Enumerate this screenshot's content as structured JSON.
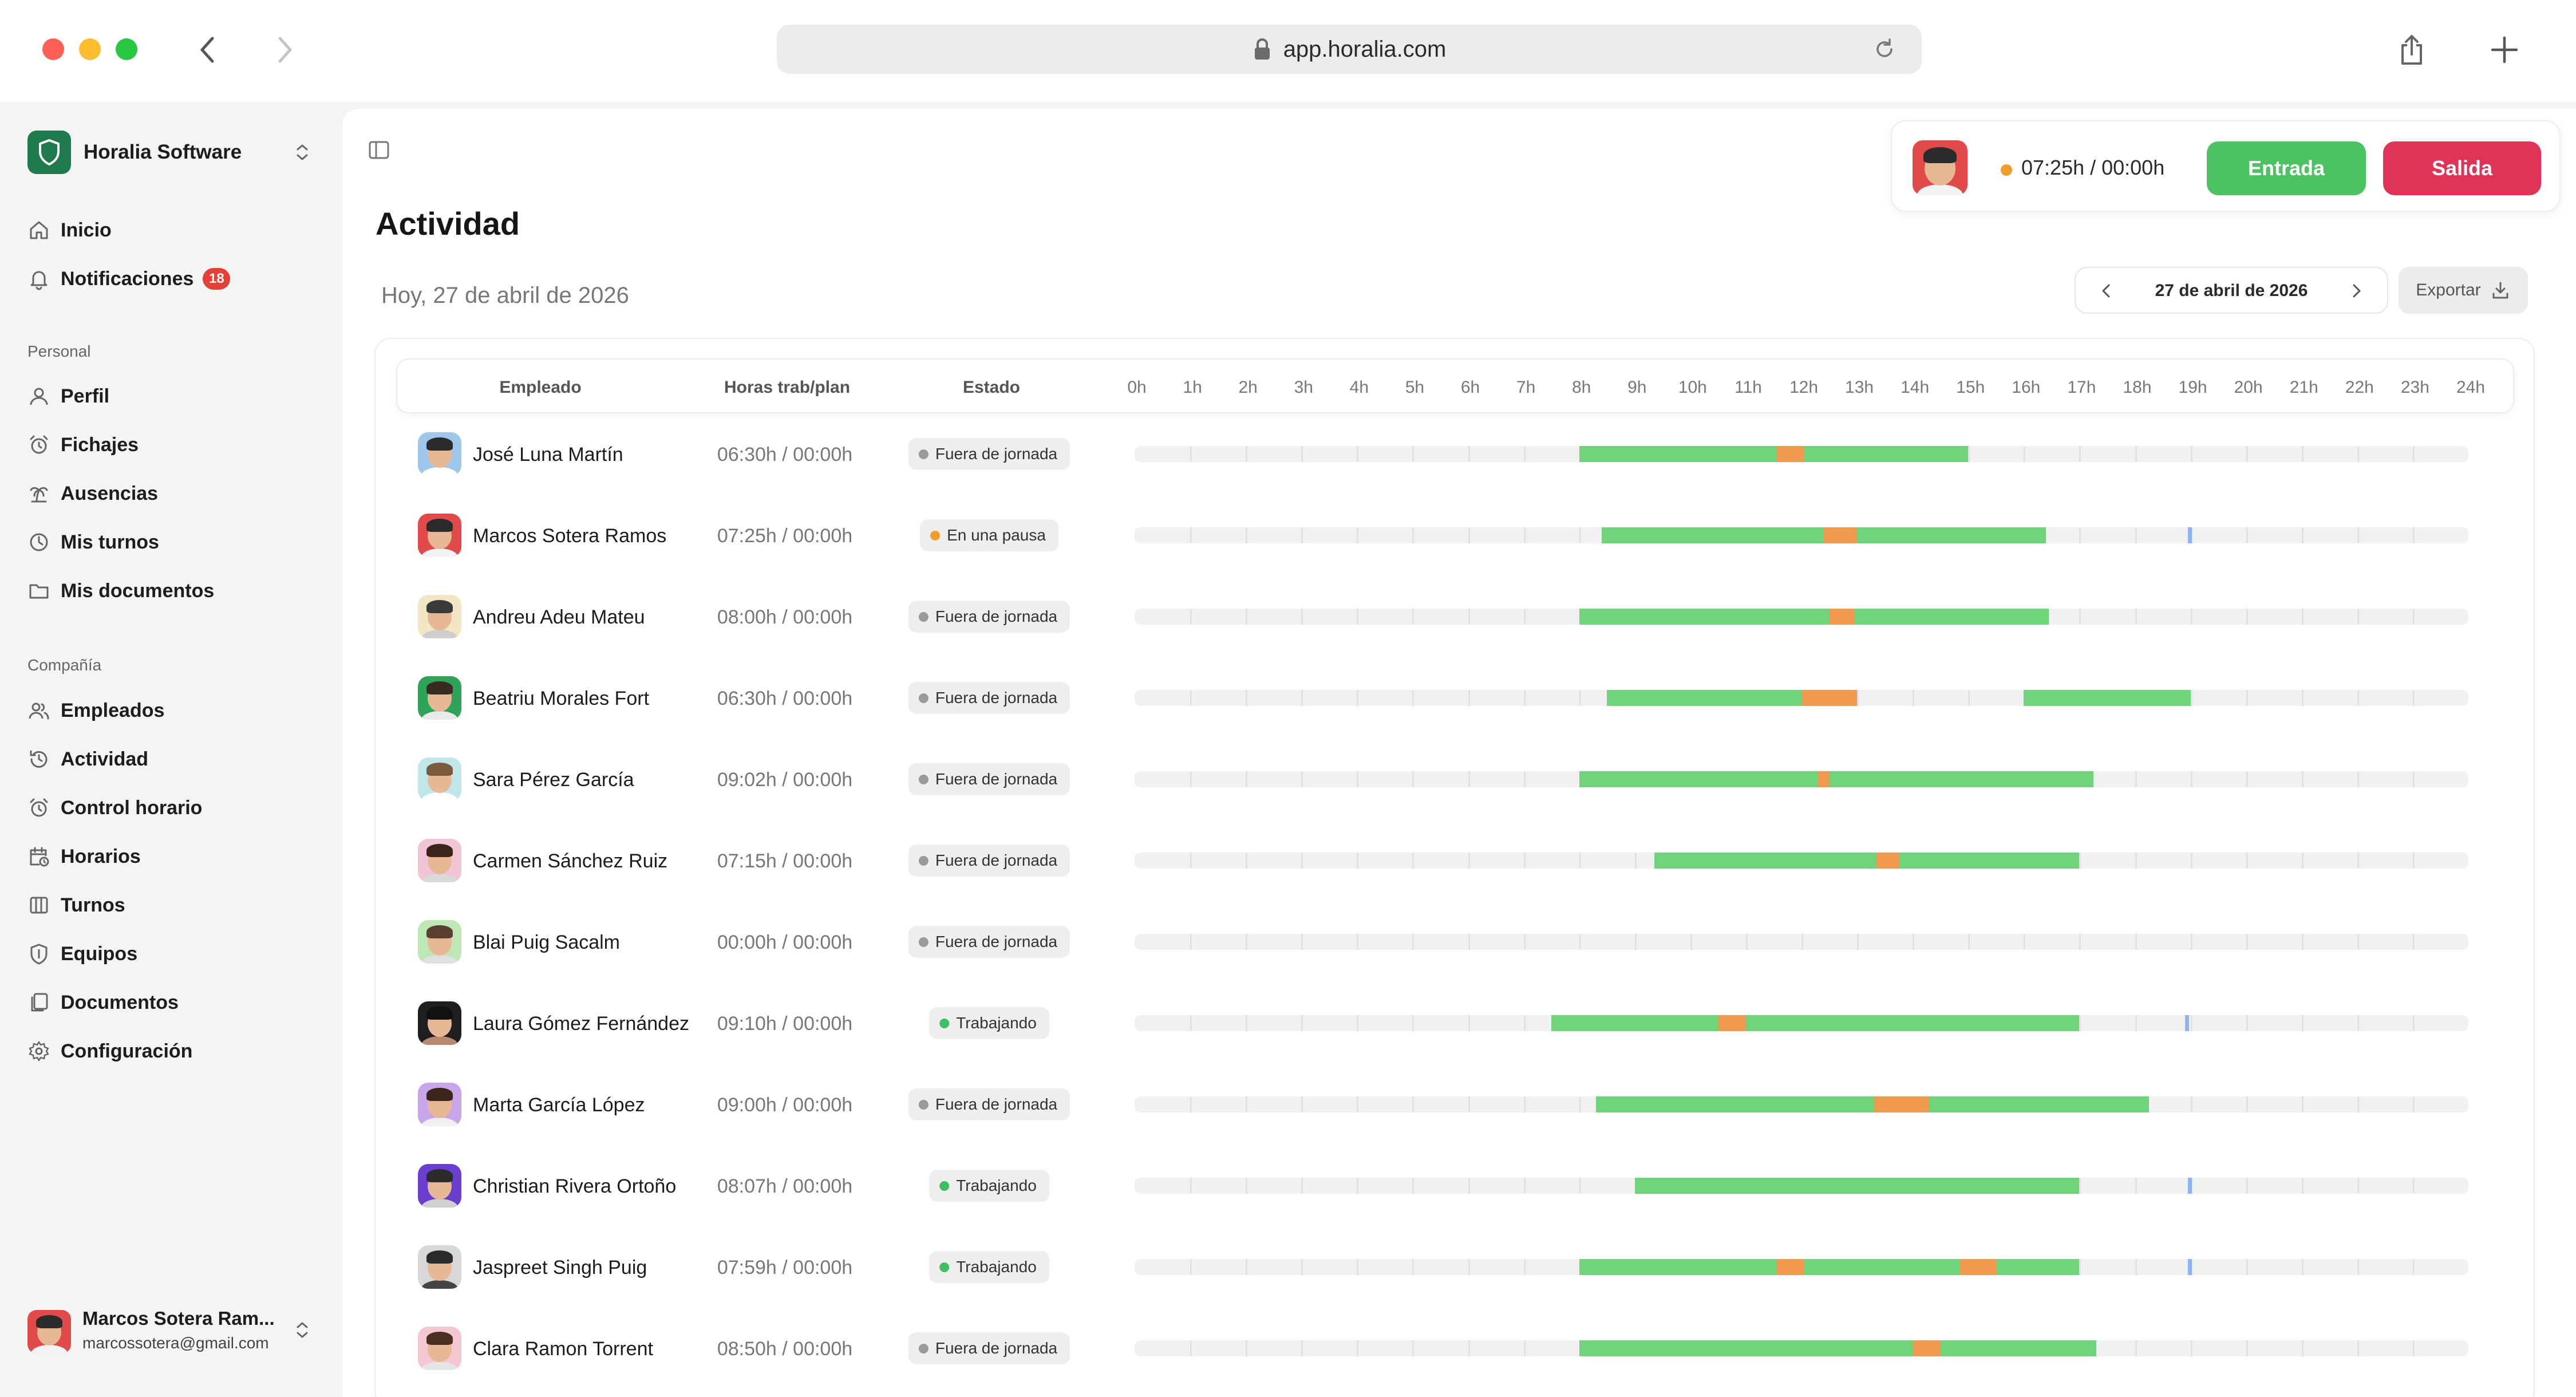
{
  "browser": {
    "url": "app.horalia.com",
    "traffic_lights": [
      "#fe5f57",
      "#febc2e",
      "#28c840"
    ]
  },
  "sidebar": {
    "org_name": "Horalia Software",
    "org_color": "#1f7a4e",
    "top_items": [
      {
        "label": "Inicio",
        "icon": "home-icon"
      },
      {
        "label": "Notificaciones",
        "icon": "bell-icon",
        "badge": "18"
      }
    ],
    "personal_label": "Personal",
    "personal_items": [
      {
        "label": "Perfil",
        "icon": "user-icon"
      },
      {
        "label": "Fichajes",
        "icon": "alarm-clock-icon"
      },
      {
        "label": "Ausencias",
        "icon": "palm-tree-icon"
      },
      {
        "label": "Mis turnos",
        "icon": "clock-icon"
      },
      {
        "label": "Mis documentos",
        "icon": "folder-icon"
      }
    ],
    "company_label": "Compañía",
    "company_items": [
      {
        "label": "Empleados",
        "icon": "users-icon"
      },
      {
        "label": "Actividad",
        "icon": "history-icon"
      },
      {
        "label": "Control horario",
        "icon": "alarm-clock-icon"
      },
      {
        "label": "Horarios",
        "icon": "calendar-clock-icon"
      },
      {
        "label": "Turnos",
        "icon": "columns-icon"
      },
      {
        "label": "Equipos",
        "icon": "shield-icon"
      },
      {
        "label": "Documentos",
        "icon": "documents-icon"
      },
      {
        "label": "Configuración",
        "icon": "gear-icon"
      }
    ],
    "user": {
      "name": "Marcos Sotera Ram...",
      "email": "marcossotera@gmail.com"
    }
  },
  "header": {
    "title": "Actividad",
    "today": "Hoy, 27 de abril de 2026",
    "clock": {
      "status_color": "#ef9d2b",
      "time": "07:25h / 00:00h",
      "in_label": "Entrada",
      "out_label": "Salida"
    },
    "date": "27 de abril de 2026",
    "export_label": "Exportar"
  },
  "table": {
    "col_employee": "Empleado",
    "col_hours": "Horas trab/plan",
    "col_status": "Estado",
    "hours": [
      "0h",
      "1h",
      "2h",
      "3h",
      "4h",
      "5h",
      "6h",
      "7h",
      "8h",
      "9h",
      "10h",
      "11h",
      "12h",
      "13h",
      "14h",
      "15h",
      "16h",
      "17h",
      "18h",
      "19h",
      "20h",
      "21h",
      "22h",
      "23h",
      "24h"
    ],
    "colors": {
      "work": "#6fd47a",
      "pause": "#ef9a4e",
      "now": "#8fb2f7",
      "dot_off": "#9a9a9a",
      "dot_pause": "#ef9d2b",
      "dot_work": "#3fbf5f"
    },
    "rows": [
      {
        "name": "José Luna Martín",
        "hours": "06:30h / 00:00h",
        "status": "Fuera de jornada",
        "state": "off",
        "avatar": {
          "bg": "#9fc7ec",
          "hair": "#2b2b2b",
          "shirt": "#ffffff"
        },
        "segments": [
          [
            8.0,
            11.55,
            "work"
          ],
          [
            11.55,
            12.05,
            "pause"
          ],
          [
            12.05,
            15.0,
            "work"
          ]
        ]
      },
      {
        "name": "Marcos Sotera Ramos",
        "hours": "07:25h / 00:00h",
        "status": "En una pausa",
        "state": "pause",
        "avatar": {
          "bg": "#e04a4a",
          "hair": "#2b2b2b",
          "shirt": "#f3f3f3"
        },
        "segments": [
          [
            8.4,
            12.4,
            "work"
          ],
          [
            12.4,
            13.0,
            "pause"
          ],
          [
            13.0,
            16.4,
            "work"
          ],
          [
            18.95,
            19.02,
            "now"
          ]
        ]
      },
      {
        "name": "Andreu Adeu Mateu",
        "hours": "08:00h / 00:00h",
        "status": "Fuera de jornada",
        "state": "off",
        "avatar": {
          "bg": "#f3e6c4",
          "hair": "#3a3a3a",
          "shirt": "#cfcfcf"
        },
        "segments": [
          [
            8.0,
            12.5,
            "work"
          ],
          [
            12.5,
            12.95,
            "pause"
          ],
          [
            12.95,
            16.45,
            "work"
          ]
        ]
      },
      {
        "name": "Beatriu Morales Fort",
        "hours": "06:30h / 00:00h",
        "status": "Fuera de jornada",
        "state": "off",
        "avatar": {
          "bg": "#2fa35a",
          "hair": "#3a2b22",
          "shirt": "#e9e9e9"
        },
        "segments": [
          [
            8.5,
            12.0,
            "work"
          ],
          [
            12.0,
            13.0,
            "pause"
          ],
          [
            16.0,
            19.0,
            "work"
          ]
        ]
      },
      {
        "name": "Sara Pérez García",
        "hours": "09:02h / 00:00h",
        "status": "Fuera de jornada",
        "state": "off",
        "avatar": {
          "bg": "#bfe6e8",
          "hair": "#7a5a3a",
          "shirt": "#ffffff"
        },
        "segments": [
          [
            8.0,
            12.3,
            "work"
          ],
          [
            12.3,
            12.5,
            "pause"
          ],
          [
            12.5,
            17.25,
            "work"
          ]
        ]
      },
      {
        "name": "Carmen Sánchez Ruiz",
        "hours": "07:15h / 00:00h",
        "status": "Fuera de jornada",
        "state": "off",
        "avatar": {
          "bg": "#f1c4d6",
          "hair": "#3b2418",
          "shirt": "#d9d9d9"
        },
        "segments": [
          [
            9.35,
            13.35,
            "work"
          ],
          [
            13.35,
            13.75,
            "pause"
          ],
          [
            13.75,
            17.0,
            "work"
          ]
        ]
      },
      {
        "name": "Blai Puig Sacalm",
        "hours": "00:00h / 00:00h",
        "status": "Fuera de jornada",
        "state": "off",
        "avatar": {
          "bg": "#bfe6b5",
          "hair": "#5a4030",
          "shirt": "#e0e0e0"
        },
        "segments": []
      },
      {
        "name": "Laura Gómez Fernández",
        "hours": "09:10h / 00:00h",
        "status": "Trabajando",
        "state": "work",
        "avatar": {
          "bg": "#1f1f1f",
          "hair": "#111111",
          "shirt": "#b8896e"
        },
        "segments": [
          [
            7.5,
            10.5,
            "work"
          ],
          [
            10.5,
            11.0,
            "pause"
          ],
          [
            11.0,
            17.0,
            "work"
          ],
          [
            18.9,
            18.97,
            "now"
          ]
        ]
      },
      {
        "name": "Marta García López",
        "hours": "09:00h / 00:00h",
        "status": "Fuera de jornada",
        "state": "off",
        "avatar": {
          "bg": "#c7a6ea",
          "hair": "#3b2418",
          "shirt": "#f0f0f0"
        },
        "segments": [
          [
            8.3,
            13.3,
            "work"
          ],
          [
            13.3,
            14.3,
            "pause"
          ],
          [
            14.3,
            18.25,
            "work"
          ]
        ]
      },
      {
        "name": "Christian Rivera Ortoño",
        "hours": "08:07h / 00:00h",
        "status": "Trabajando",
        "state": "work",
        "avatar": {
          "bg": "#6a3fd0",
          "hair": "#2b2b2b",
          "shirt": "#d0d0d0"
        },
        "segments": [
          [
            9.0,
            17.0,
            "work"
          ],
          [
            18.95,
            19.02,
            "now"
          ]
        ]
      },
      {
        "name": "Jaspreet Singh Puig",
        "hours": "07:59h / 00:00h",
        "status": "Trabajando",
        "state": "work",
        "avatar": {
          "bg": "#d8d8d8",
          "hair": "#2b2b2b",
          "shirt": "#444444"
        },
        "segments": [
          [
            8.0,
            11.55,
            "work"
          ],
          [
            11.55,
            12.05,
            "pause"
          ],
          [
            12.05,
            14.85,
            "work"
          ],
          [
            14.85,
            15.5,
            "pause"
          ],
          [
            15.5,
            17.0,
            "work"
          ],
          [
            18.95,
            19.02,
            "now"
          ]
        ]
      },
      {
        "name": "Clara Ramon Torrent",
        "hours": "08:50h / 00:00h",
        "status": "Fuera de jornada",
        "state": "off",
        "avatar": {
          "bg": "#f4c6cf",
          "hair": "#4a2e1f",
          "shirt": "#e6e6e6"
        },
        "segments": [
          [
            8.0,
            14.0,
            "work"
          ],
          [
            14.0,
            14.5,
            "pause"
          ],
          [
            14.5,
            17.3,
            "work"
          ]
        ]
      }
    ]
  }
}
